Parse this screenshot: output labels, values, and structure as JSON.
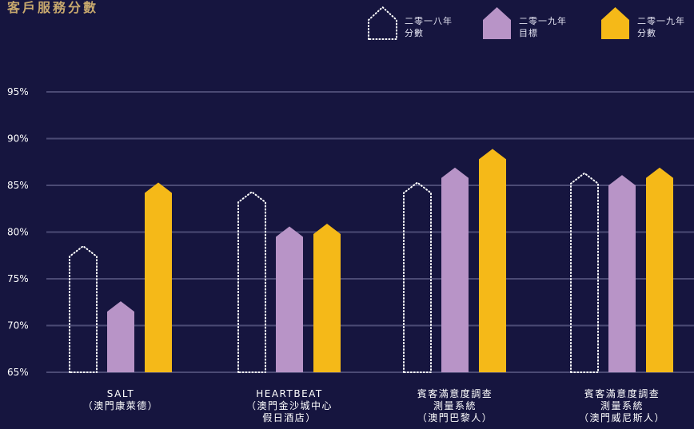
{
  "title": "客戶服務分數",
  "colors": {
    "background": "#16153f",
    "gridline": "#4b4a74",
    "outline": "#ffffff",
    "target": "#b894c7",
    "score": "#f5b918"
  },
  "legend": [
    {
      "key": "s2018",
      "line1": "二零一八年",
      "line2": "分數",
      "style": "dotted"
    },
    {
      "key": "t2019",
      "line1": "二零一九年",
      "line2": "目標",
      "style": "target"
    },
    {
      "key": "s2019",
      "line1": "二零一九年",
      "line2": "分數",
      "style": "score"
    }
  ],
  "chart_data": {
    "type": "bar",
    "title": "客戶服務分數",
    "ylim": [
      65,
      95
    ],
    "yticks": [
      "65%",
      "70%",
      "75%",
      "80%",
      "85%",
      "90%",
      "95%"
    ],
    "ytick_values": [
      65,
      70,
      75,
      80,
      85,
      90,
      95
    ],
    "grid": true,
    "legend_position": "top-right",
    "categories": [
      {
        "lines": [
          "SALT",
          "（澳門康萊德）"
        ]
      },
      {
        "lines": [
          "HEARTBEAT",
          "（澳門金沙城中心",
          "假日酒店）"
        ]
      },
      {
        "lines": [
          "賓客滿意度調查",
          "測量系統",
          "（澳門巴黎人）"
        ]
      },
      {
        "lines": [
          "賓客滿意度調查",
          "測量系統",
          "（澳門威尼斯人）"
        ]
      }
    ],
    "series": [
      {
        "key": "s2018",
        "style": "dotted",
        "values": [
          78.5,
          84.3,
          85.3,
          86.3
        ]
      },
      {
        "key": "t2019",
        "style": "target",
        "values": [
          72.6,
          80.6,
          86.9,
          86.1
        ]
      },
      {
        "key": "s2019",
        "style": "score",
        "values": [
          85.3,
          80.9,
          88.9,
          86.9
        ]
      }
    ]
  }
}
